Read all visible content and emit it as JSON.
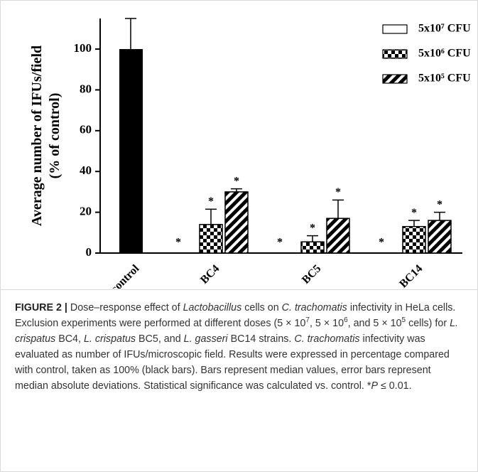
{
  "chart_data": {
    "type": "bar",
    "y_label": [
      "Average number of IFUs/field",
      "(% of control)"
    ],
    "ylim": [
      0,
      115
    ],
    "yticks": [
      0,
      20,
      40,
      60,
      80,
      100
    ],
    "control": {
      "label": "control",
      "value": 100,
      "error": 15,
      "color": "#000000"
    },
    "categories": [
      "BC4",
      "BC5",
      "BC14"
    ],
    "series": [
      {
        "name": "5x10⁷ CFU",
        "color": "#ffffff",
        "pattern": "solid",
        "values": [
          0,
          0,
          0
        ],
        "errors": [
          null,
          null,
          null
        ],
        "significance": [
          "*",
          "*",
          "*"
        ]
      },
      {
        "name": "5x10⁶ CFU",
        "color": "#000000",
        "pattern": "checker",
        "values": [
          14,
          5.5,
          13
        ],
        "errors": [
          7.5,
          3,
          3
        ],
        "significance": [
          "*",
          "*",
          "*"
        ]
      },
      {
        "name": "5x10⁵ CFU",
        "color": "#000000",
        "pattern": "stripes",
        "values": [
          30,
          17,
          16
        ],
        "errors": [
          1.5,
          9,
          4
        ],
        "significance": [
          "*",
          "*",
          "*"
        ]
      }
    ],
    "legend": "top-right"
  },
  "caption": [
    {
      "text": "FIGURE 2 | ",
      "style": "bold"
    },
    {
      "text": "Dose–response effect of "
    },
    {
      "text": "Lactobacillus",
      "style": "italic"
    },
    {
      "text": " cells on "
    },
    {
      "text": "C. trachomatis",
      "style": "italic"
    },
    {
      "text": " infectivity in HeLa cells. Exclusion experiments were performed at different doses (5 × 10"
    },
    {
      "text": "7",
      "style": "sup"
    },
    {
      "text": ", 5 × 10"
    },
    {
      "text": "6",
      "style": "sup"
    },
    {
      "text": ", and 5 × 10"
    },
    {
      "text": "5",
      "style": "sup"
    },
    {
      "text": " cells) for "
    },
    {
      "text": "L. crispatus",
      "style": "italic"
    },
    {
      "text": " BC4, "
    },
    {
      "text": "L. crispatus",
      "style": "italic"
    },
    {
      "text": " BC5, and "
    },
    {
      "text": "L. gasseri",
      "style": "italic"
    },
    {
      "text": " BC14 strains. "
    },
    {
      "text": "C. trachomatis",
      "style": "italic"
    },
    {
      "text": " infectivity was evaluated as number of IFUs/microscopic field. Results were expressed in percentage compared with control, taken as 100% (black bars). Bars represent median values, error bars represent median absolute deviations. Statistical significance was calculated vs. control. *"
    },
    {
      "text": "P",
      "style": "italic"
    },
    {
      "text": " ≤ 0.01."
    }
  ]
}
